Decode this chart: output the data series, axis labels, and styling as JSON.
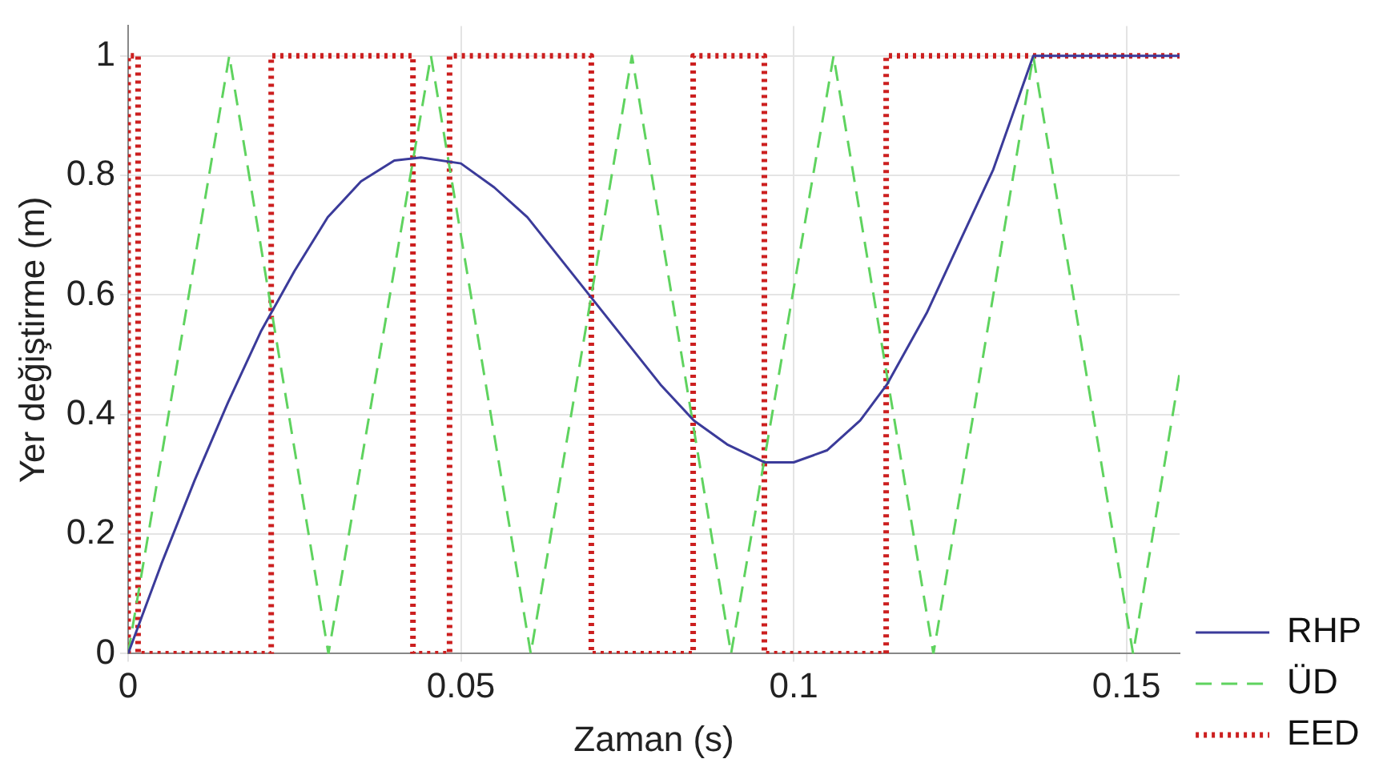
{
  "chart_data": {
    "type": "line",
    "xlabel": "Zaman (s)",
    "ylabel": "Yer değiştirme (m)",
    "xlim": [
      0,
      0.158
    ],
    "ylim": [
      0,
      1.05
    ],
    "xticks": [
      0,
      0.05,
      0.1,
      0.15
    ],
    "yticks": [
      0,
      0.2,
      0.4,
      0.6,
      0.8,
      1
    ],
    "grid": true,
    "legend": "bottom right",
    "marker": "none",
    "series": [
      {
        "name": "RHP",
        "color": "#3b3b9a",
        "line_style": "solid",
        "x": [
          0,
          0.005,
          0.01,
          0.015,
          0.02,
          0.025,
          0.03,
          0.035,
          0.04,
          0.044,
          0.05,
          0.055,
          0.06,
          0.065,
          0.07,
          0.075,
          0.08,
          0.085,
          0.09,
          0.0956,
          0.1,
          0.105,
          0.11,
          0.114,
          0.12,
          0.125,
          0.13,
          0.136,
          0.158
        ],
        "values": [
          0,
          0.15,
          0.29,
          0.42,
          0.54,
          0.64,
          0.73,
          0.79,
          0.825,
          0.83,
          0.82,
          0.78,
          0.73,
          0.66,
          0.59,
          0.52,
          0.45,
          0.39,
          0.35,
          0.32,
          0.32,
          0.34,
          0.39,
          0.45,
          0.57,
          0.69,
          0.81,
          1,
          1
        ]
      },
      {
        "name": "ÜD",
        "color": "#5fd35f",
        "line_style": "dashed",
        "x": [
          0,
          0.0152,
          0.0301,
          0.0455,
          0.0605,
          0.0757,
          0.0906,
          0.106,
          0.121,
          0.136,
          0.151,
          0.158
        ],
        "values": [
          0,
          1,
          0,
          1,
          0,
          1,
          0,
          1,
          0,
          1,
          0,
          0.47
        ]
      },
      {
        "name": "EED",
        "color": "#cc1f1f",
        "line_style": "dotted",
        "x": [
          0,
          0,
          0.0015,
          0.0015,
          0.0215,
          0.0215,
          0.0428,
          0.0428,
          0.0483,
          0.0483,
          0.0696,
          0.0696,
          0.0849,
          0.0849,
          0.0956,
          0.0956,
          0.1139,
          0.1139,
          0.158
        ],
        "values": [
          0,
          1,
          1,
          0,
          0,
          1,
          1,
          0,
          0,
          1,
          1,
          0,
          0,
          1,
          1,
          0,
          0,
          1,
          1
        ]
      }
    ]
  }
}
